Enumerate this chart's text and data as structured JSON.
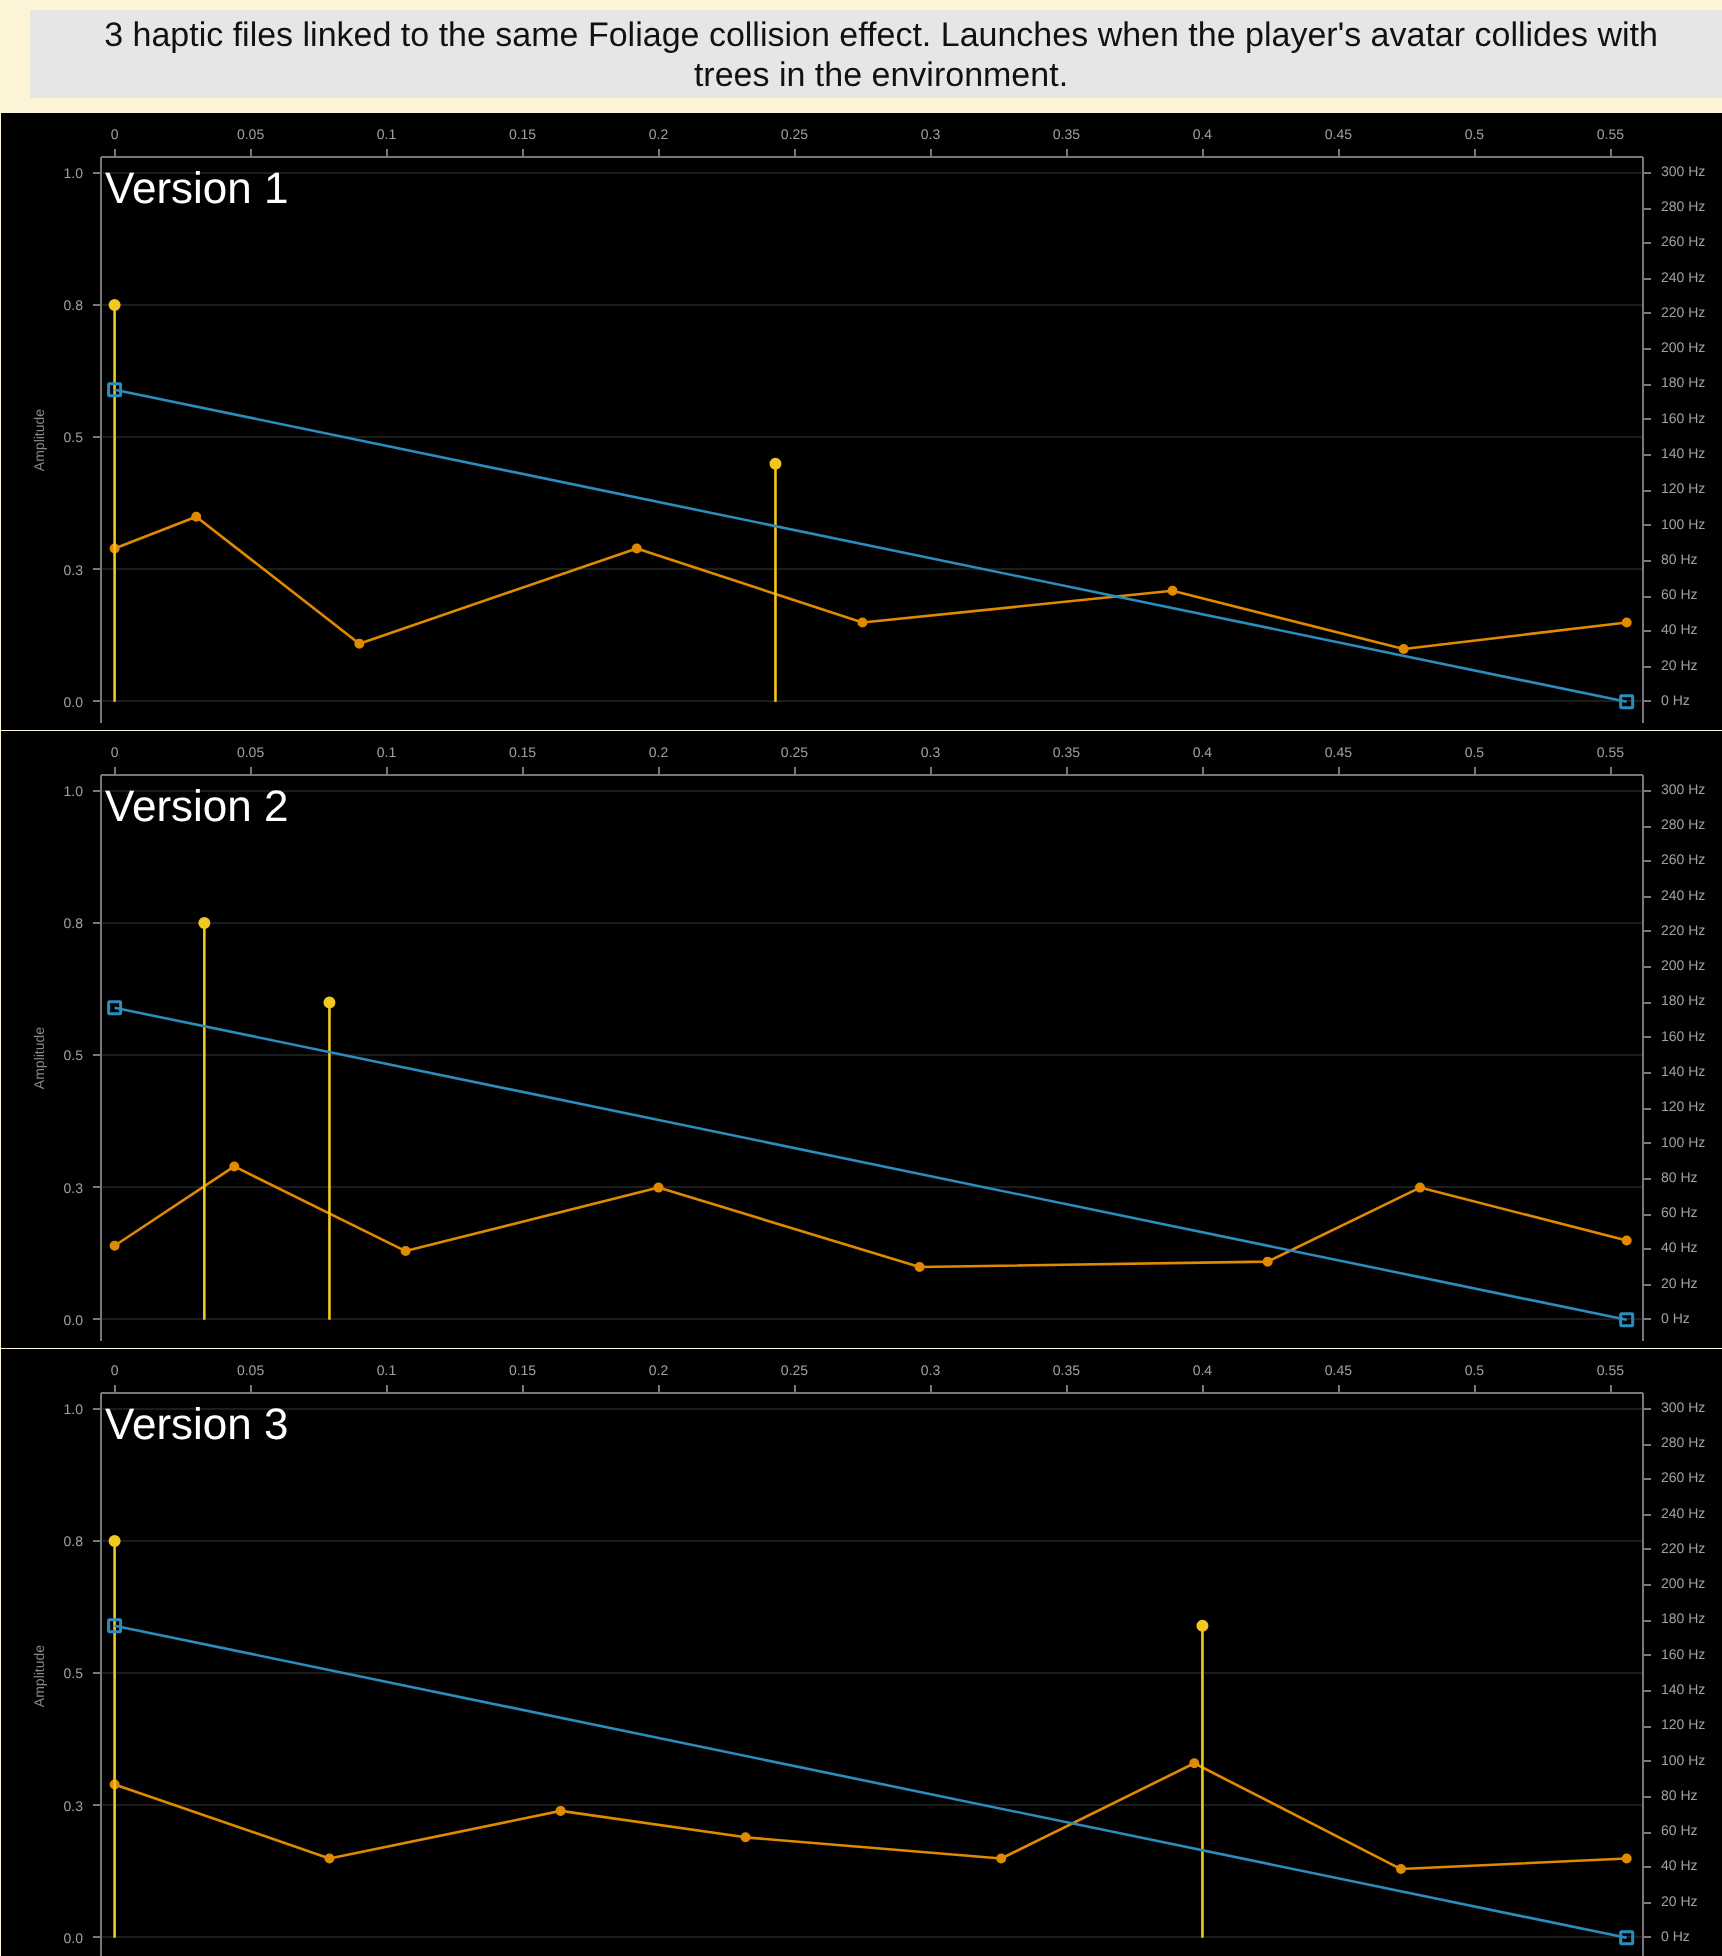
{
  "chart_data": [
    {
      "type": "other",
      "title": "3 haptic files linked to the same Foliage collision effect. Launches when the player's avatar collides with trees in the environment."
    },
    {
      "type": "line",
      "title": "Version 1",
      "ylabel": "Amplitude",
      "xlim": [
        -0.005,
        0.562
      ],
      "xticks": [
        0,
        0.05,
        0.1,
        0.15,
        0.2,
        0.25,
        0.3,
        0.35,
        0.4,
        0.45,
        0.5,
        0.55
      ],
      "ylim": [
        -0.04,
        1.03
      ],
      "yticks": [
        {
          "value": 0,
          "label": "0.0"
        },
        {
          "value": 0.25,
          "label": "0.3"
        },
        {
          "value": 0.5,
          "label": "0.5"
        },
        {
          "value": 0.75,
          "label": "0.8"
        },
        {
          "value": 1,
          "label": "1.0"
        }
      ],
      "y2lim": [
        -12,
        309
      ],
      "y2ticks": [
        {
          "value": 0,
          "label": "0 Hz"
        },
        {
          "value": 20,
          "label": "20 Hz"
        },
        {
          "value": 40,
          "label": "40 Hz"
        },
        {
          "value": 60,
          "label": "60 Hz"
        },
        {
          "value": 80,
          "label": "80 Hz"
        },
        {
          "value": 100,
          "label": "100 Hz"
        },
        {
          "value": 120,
          "label": "120 Hz"
        },
        {
          "value": 140,
          "label": "140 Hz"
        },
        {
          "value": 160,
          "label": "160 Hz"
        },
        {
          "value": 180,
          "label": "180 Hz"
        },
        {
          "value": 200,
          "label": "200 Hz"
        },
        {
          "value": 220,
          "label": "220 Hz"
        },
        {
          "value": 240,
          "label": "240 Hz"
        },
        {
          "value": 260,
          "label": "260 Hz"
        },
        {
          "value": 280,
          "label": "280 Hz"
        },
        {
          "value": 300,
          "label": "300 Hz"
        }
      ],
      "grid": "y",
      "series": [
        {
          "type": "line",
          "color": "#e08a00",
          "marker": "circle",
          "x": [
            0,
            0.03,
            0.09,
            0.192,
            0.275,
            0.389,
            0.474,
            0.556
          ],
          "values": [
            0.29,
            0.35,
            0.11,
            0.29,
            0.15,
            0.21,
            0.1,
            0.15
          ]
        },
        {
          "type": "lollipop",
          "color": "#f2c81e",
          "x": [
            0,
            0.243
          ],
          "values": [
            0.75,
            0.45
          ]
        },
        {
          "type": "line",
          "axis": "y2",
          "color": "#2b8cbe",
          "marker": "square",
          "x": [
            0,
            0.556
          ],
          "values": [
            177,
            0
          ]
        }
      ]
    },
    {
      "type": "line",
      "title": "Version 2",
      "ylabel": "Amplitude",
      "xlim": [
        -0.005,
        0.562
      ],
      "xticks": [
        0,
        0.05,
        0.1,
        0.15,
        0.2,
        0.25,
        0.3,
        0.35,
        0.4,
        0.45,
        0.5,
        0.55
      ],
      "ylim": [
        -0.04,
        1.03
      ],
      "yticks": [
        {
          "value": 0,
          "label": "0.0"
        },
        {
          "value": 0.25,
          "label": "0.3"
        },
        {
          "value": 0.5,
          "label": "0.5"
        },
        {
          "value": 0.75,
          "label": "0.8"
        },
        {
          "value": 1,
          "label": "1.0"
        }
      ],
      "y2lim": [
        -12,
        309
      ],
      "y2ticks": [
        {
          "value": 0,
          "label": "0 Hz"
        },
        {
          "value": 20,
          "label": "20 Hz"
        },
        {
          "value": 40,
          "label": "40 Hz"
        },
        {
          "value": 60,
          "label": "60 Hz"
        },
        {
          "value": 80,
          "label": "80 Hz"
        },
        {
          "value": 100,
          "label": "100 Hz"
        },
        {
          "value": 120,
          "label": "120 Hz"
        },
        {
          "value": 140,
          "label": "140 Hz"
        },
        {
          "value": 160,
          "label": "160 Hz"
        },
        {
          "value": 180,
          "label": "180 Hz"
        },
        {
          "value": 200,
          "label": "200 Hz"
        },
        {
          "value": 220,
          "label": "220 Hz"
        },
        {
          "value": 240,
          "label": "240 Hz"
        },
        {
          "value": 260,
          "label": "260 Hz"
        },
        {
          "value": 280,
          "label": "280 Hz"
        },
        {
          "value": 300,
          "label": "300 Hz"
        }
      ],
      "grid": "y",
      "series": [
        {
          "type": "line",
          "color": "#e08a00",
          "marker": "circle",
          "x": [
            0,
            0.044,
            0.107,
            0.2,
            0.296,
            0.424,
            0.48,
            0.556
          ],
          "values": [
            0.14,
            0.29,
            0.13,
            0.25,
            0.1,
            0.11,
            0.25,
            0.15
          ]
        },
        {
          "type": "lollipop",
          "color": "#f2c81e",
          "x": [
            0.033,
            0.079
          ],
          "values": [
            0.75,
            0.6
          ]
        },
        {
          "type": "line",
          "axis": "y2",
          "color": "#2b8cbe",
          "marker": "square",
          "x": [
            0,
            0.556
          ],
          "values": [
            177,
            0
          ]
        }
      ]
    },
    {
      "type": "line",
      "title": "Version 3",
      "ylabel": "Amplitude",
      "xlim": [
        -0.005,
        0.562
      ],
      "xticks": [
        0,
        0.05,
        0.1,
        0.15,
        0.2,
        0.25,
        0.3,
        0.35,
        0.4,
        0.45,
        0.5,
        0.55
      ],
      "ylim": [
        -0.04,
        1.03
      ],
      "yticks": [
        {
          "value": 0,
          "label": "0.0"
        },
        {
          "value": 0.25,
          "label": "0.3"
        },
        {
          "value": 0.5,
          "label": "0.5"
        },
        {
          "value": 0.75,
          "label": "0.8"
        },
        {
          "value": 1,
          "label": "1.0"
        }
      ],
      "y2lim": [
        -12,
        309
      ],
      "y2ticks": [
        {
          "value": 0,
          "label": "0 Hz"
        },
        {
          "value": 20,
          "label": "20 Hz"
        },
        {
          "value": 40,
          "label": "40 Hz"
        },
        {
          "value": 60,
          "label": "60 Hz"
        },
        {
          "value": 80,
          "label": "80 Hz"
        },
        {
          "value": 100,
          "label": "100 Hz"
        },
        {
          "value": 120,
          "label": "120 Hz"
        },
        {
          "value": 140,
          "label": "140 Hz"
        },
        {
          "value": 160,
          "label": "160 Hz"
        },
        {
          "value": 180,
          "label": "180 Hz"
        },
        {
          "value": 200,
          "label": "200 Hz"
        },
        {
          "value": 220,
          "label": "220 Hz"
        },
        {
          "value": 240,
          "label": "240 Hz"
        },
        {
          "value": 260,
          "label": "260 Hz"
        },
        {
          "value": 280,
          "label": "280 Hz"
        },
        {
          "value": 300,
          "label": "300 Hz"
        }
      ],
      "grid": "y",
      "series": [
        {
          "type": "line",
          "color": "#e08a00",
          "marker": "circle",
          "x": [
            0,
            0.079,
            0.164,
            0.232,
            0.326,
            0.397,
            0.473,
            0.556
          ],
          "values": [
            0.29,
            0.15,
            0.24,
            0.19,
            0.15,
            0.33,
            0.13,
            0.15
          ]
        },
        {
          "type": "lollipop",
          "color": "#f2c81e",
          "x": [
            0,
            0.4
          ],
          "values": [
            0.75,
            0.59
          ]
        },
        {
          "type": "line",
          "axis": "y2",
          "color": "#2b8cbe",
          "marker": "square",
          "x": [
            0,
            0.556
          ],
          "values": [
            177,
            0
          ]
        }
      ]
    }
  ]
}
